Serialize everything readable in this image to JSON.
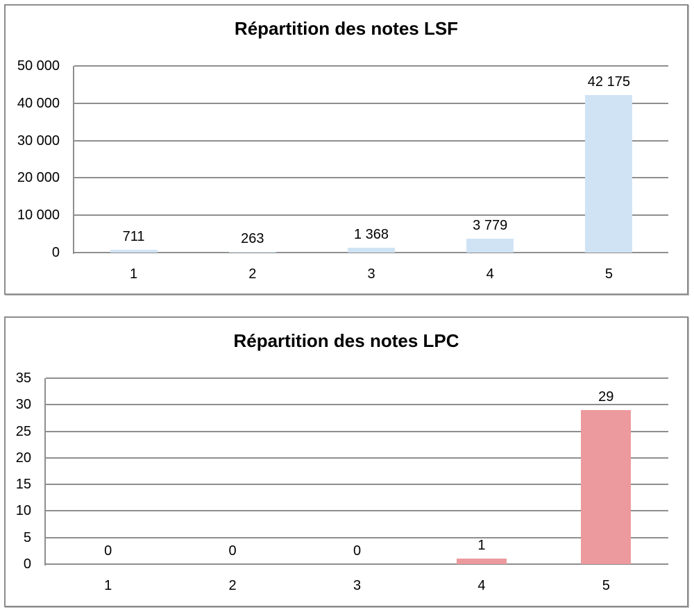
{
  "chart_data": [
    {
      "type": "bar",
      "title": "Répartition des notes LSF",
      "categories": [
        "1",
        "2",
        "3",
        "4",
        "5"
      ],
      "values": [
        711,
        263,
        1368,
        3779,
        42175
      ],
      "value_labels": [
        "711",
        "263",
        "1 368",
        "3 779",
        "42 175"
      ],
      "ylim": [
        0,
        50000
      ],
      "ytick_interval": 10000,
      "ytick_labels": [
        "0",
        "10 000",
        "20 000",
        "30 000",
        "40 000",
        "50 000"
      ],
      "bar_color": "#cfe3f5",
      "grid": "on",
      "legend": "none",
      "xlabel": "",
      "ylabel": ""
    },
    {
      "type": "bar",
      "title": "Répartition des notes LPC",
      "categories": [
        "1",
        "2",
        "3",
        "4",
        "5"
      ],
      "values": [
        0,
        0,
        0,
        1,
        29
      ],
      "value_labels": [
        "0",
        "0",
        "0",
        "1",
        "29"
      ],
      "ylim": [
        0,
        35
      ],
      "ytick_interval": 5,
      "ytick_labels": [
        "0",
        "5",
        "10",
        "15",
        "20",
        "25",
        "30",
        "35"
      ],
      "bar_color": "#ec9a9d",
      "grid": "on",
      "legend": "none",
      "xlabel": "",
      "ylabel": ""
    }
  ],
  "colors": {
    "panel_border": "#8c8c8c",
    "gridline": "#8e8e8e",
    "text": "#000000",
    "background": "#ffffff",
    "lsf_bar": "#cfe3f5",
    "lpc_bar": "#ec9a9d"
  }
}
